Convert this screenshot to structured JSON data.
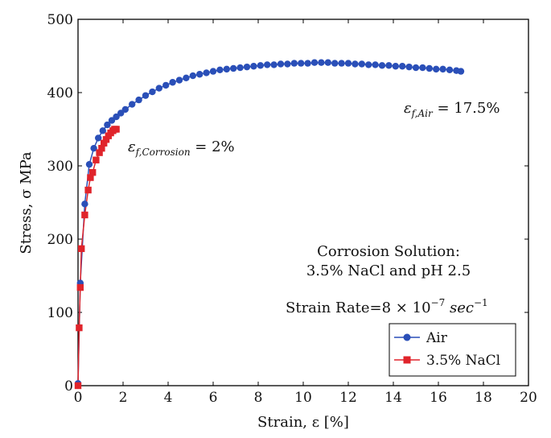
{
  "chart_data": {
    "type": "line",
    "title": "",
    "xlabel": "Strain, ε [%]",
    "ylabel": "Stress, σ MPa",
    "xlim": [
      0,
      20
    ],
    "ylim": [
      0,
      500
    ],
    "xticks": [
      0,
      2,
      4,
      6,
      8,
      10,
      12,
      14,
      16,
      18,
      20
    ],
    "yticks": [
      0,
      100,
      200,
      300,
      400,
      500
    ],
    "grid": false,
    "legend_position": "bottom-right",
    "series": [
      {
        "name": "Air",
        "color": "#2a4fb8",
        "marker": "circle",
        "x": [
          0.0,
          0.1,
          0.3,
          0.5,
          0.7,
          0.9,
          1.1,
          1.3,
          1.5,
          1.7,
          1.9,
          2.1,
          2.4,
          2.7,
          3.0,
          3.3,
          3.6,
          3.9,
          4.2,
          4.5,
          4.8,
          5.1,
          5.4,
          5.7,
          6.0,
          6.3,
          6.6,
          6.9,
          7.2,
          7.5,
          7.8,
          8.1,
          8.4,
          8.7,
          9.0,
          9.3,
          9.6,
          9.9,
          10.2,
          10.5,
          10.8,
          11.1,
          11.4,
          11.7,
          12.0,
          12.3,
          12.6,
          12.9,
          13.2,
          13.5,
          13.8,
          14.1,
          14.4,
          14.7,
          15.0,
          15.3,
          15.6,
          15.9,
          16.2,
          16.5,
          16.8,
          17.0
        ],
        "y": [
          3,
          140,
          248,
          302,
          324,
          338,
          348,
          356,
          362,
          367,
          372,
          377,
          384,
          390,
          396,
          401,
          406,
          410,
          414,
          417,
          420,
          423,
          425,
          427,
          429,
          431,
          432,
          433,
          434,
          435,
          436,
          437,
          438,
          438,
          439,
          439,
          440,
          440,
          440,
          441,
          441,
          441,
          440,
          440,
          440,
          439,
          439,
          438,
          438,
          437,
          437,
          436,
          436,
          435,
          434,
          434,
          433,
          432,
          432,
          431,
          430,
          429
        ]
      },
      {
        "name": "3.5% NaCl",
        "color": "#e0242b",
        "marker": "square",
        "x": [
          0.0,
          0.05,
          0.1,
          0.15,
          0.3,
          0.45,
          0.55,
          0.65,
          0.8,
          0.95,
          1.05,
          1.15,
          1.25,
          1.35,
          1.45,
          1.55,
          1.62,
          1.7
        ],
        "y": [
          0,
          79,
          134,
          187,
          233,
          267,
          284,
          291,
          308,
          318,
          324,
          331,
          336,
          341,
          345,
          348,
          350,
          350
        ]
      }
    ],
    "annotations": {
      "eps_corrosion": {
        "main": "ε",
        "sub": "f,Corrosion",
        "rest": " = 2%"
      },
      "eps_air": {
        "main": "ε",
        "sub": "f,Air",
        "rest": " = 17.5%"
      },
      "solution_line1": "Corrosion Solution:",
      "solution_line2": "3.5% NaCl and pH 2.5",
      "strain_rate_prefix": "Strain Rate=8 × 10",
      "strain_rate_exp": "−7",
      "strain_rate_unit_main": " sec",
      "strain_rate_unit_exp": "−1"
    }
  }
}
